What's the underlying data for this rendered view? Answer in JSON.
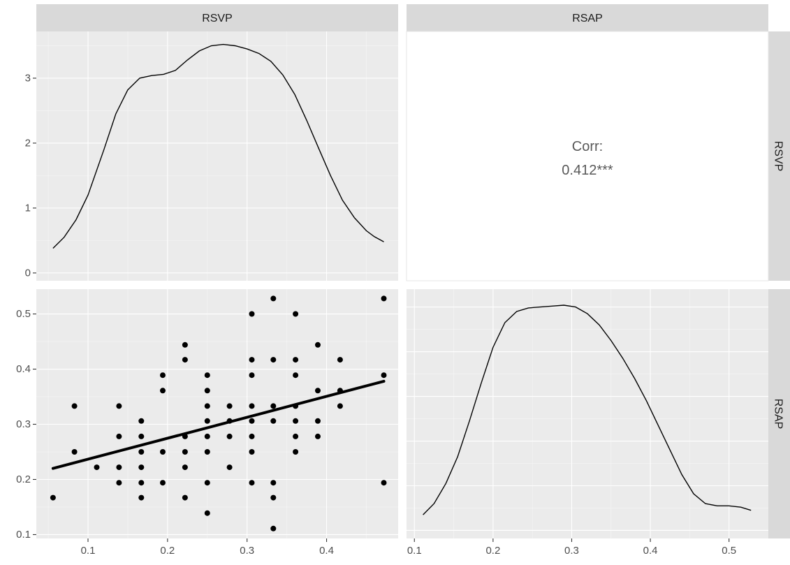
{
  "strips": {
    "top": [
      "RSVP",
      "RSAP"
    ],
    "right": [
      "RSVP",
      "RSAP"
    ]
  },
  "corr": {
    "label": "Corr:",
    "value": "0.412***",
    "r": 0.412
  },
  "chart_data": [
    {
      "panel": "RSVP density",
      "type": "line",
      "x_var": "RSVP",
      "xlim": [
        0.035,
        0.49
      ],
      "ylim": [
        -0.12,
        3.72
      ],
      "x_ticks": [
        0.1,
        0.2,
        0.3,
        0.4
      ],
      "y_ticks": [
        0,
        1,
        2,
        3
      ],
      "y_tick_labels": [
        "0",
        "1",
        "2",
        "3"
      ],
      "grid": true,
      "x": [
        0.056,
        0.07,
        0.085,
        0.1,
        0.12,
        0.135,
        0.15,
        0.165,
        0.18,
        0.195,
        0.21,
        0.225,
        0.24,
        0.255,
        0.27,
        0.285,
        0.3,
        0.315,
        0.33,
        0.345,
        0.36,
        0.375,
        0.39,
        0.405,
        0.42,
        0.435,
        0.45,
        0.46,
        0.472
      ],
      "y": [
        0.38,
        0.55,
        0.82,
        1.2,
        1.9,
        2.45,
        2.82,
        3.0,
        3.04,
        3.06,
        3.12,
        3.28,
        3.42,
        3.5,
        3.52,
        3.5,
        3.45,
        3.38,
        3.26,
        3.05,
        2.75,
        2.35,
        1.92,
        1.5,
        1.12,
        0.85,
        0.65,
        0.56,
        0.48
      ]
    },
    {
      "panel": "RSVP vs RSAP scatter",
      "type": "scatter",
      "x_var": "RSVP",
      "y_var": "RSAP",
      "xlim": [
        0.035,
        0.49
      ],
      "ylim": [
        0.093,
        0.545
      ],
      "x_ticks": [
        0.1,
        0.2,
        0.3,
        0.4
      ],
      "y_ticks": [
        0.1,
        0.2,
        0.3,
        0.4,
        0.5
      ],
      "grid": true,
      "points": [
        [
          0.056,
          0.167
        ],
        [
          0.083,
          0.333
        ],
        [
          0.083,
          0.25
        ],
        [
          0.111,
          0.222
        ],
        [
          0.139,
          0.333
        ],
        [
          0.139,
          0.278
        ],
        [
          0.139,
          0.222
        ],
        [
          0.139,
          0.194
        ],
        [
          0.167,
          0.306
        ],
        [
          0.167,
          0.278
        ],
        [
          0.167,
          0.25
        ],
        [
          0.167,
          0.222
        ],
        [
          0.167,
          0.194
        ],
        [
          0.167,
          0.167
        ],
        [
          0.194,
          0.389
        ],
        [
          0.194,
          0.361
        ],
        [
          0.194,
          0.25
        ],
        [
          0.194,
          0.194
        ],
        [
          0.222,
          0.444
        ],
        [
          0.222,
          0.417
        ],
        [
          0.222,
          0.278
        ],
        [
          0.222,
          0.25
        ],
        [
          0.222,
          0.222
        ],
        [
          0.222,
          0.167
        ],
        [
          0.25,
          0.389
        ],
        [
          0.25,
          0.361
        ],
        [
          0.25,
          0.333
        ],
        [
          0.25,
          0.306
        ],
        [
          0.25,
          0.278
        ],
        [
          0.25,
          0.25
        ],
        [
          0.25,
          0.194
        ],
        [
          0.25,
          0.139
        ],
        [
          0.278,
          0.333
        ],
        [
          0.278,
          0.306
        ],
        [
          0.278,
          0.278
        ],
        [
          0.278,
          0.222
        ],
        [
          0.306,
          0.5
        ],
        [
          0.306,
          0.417
        ],
        [
          0.306,
          0.389
        ],
        [
          0.306,
          0.333
        ],
        [
          0.306,
          0.306
        ],
        [
          0.306,
          0.278
        ],
        [
          0.306,
          0.25
        ],
        [
          0.306,
          0.194
        ],
        [
          0.333,
          0.528
        ],
        [
          0.333,
          0.417
        ],
        [
          0.333,
          0.333
        ],
        [
          0.333,
          0.306
        ],
        [
          0.333,
          0.194
        ],
        [
          0.333,
          0.167
        ],
        [
          0.333,
          0.111
        ],
        [
          0.361,
          0.5
        ],
        [
          0.361,
          0.417
        ],
        [
          0.361,
          0.389
        ],
        [
          0.361,
          0.333
        ],
        [
          0.361,
          0.306
        ],
        [
          0.361,
          0.278
        ],
        [
          0.361,
          0.25
        ],
        [
          0.389,
          0.444
        ],
        [
          0.389,
          0.361
        ],
        [
          0.389,
          0.306
        ],
        [
          0.389,
          0.278
        ],
        [
          0.417,
          0.417
        ],
        [
          0.417,
          0.361
        ],
        [
          0.417,
          0.333
        ],
        [
          0.472,
          0.528
        ],
        [
          0.472,
          0.389
        ],
        [
          0.472,
          0.194
        ]
      ],
      "fit_line": {
        "x": [
          0.056,
          0.472
        ],
        "y": [
          0.22,
          0.378
        ]
      }
    },
    {
      "panel": "RSAP density",
      "type": "line",
      "x_var": "RSAP",
      "xlim": [
        0.09,
        0.55
      ],
      "ylim": [
        -0.18,
        5.4
      ],
      "x_ticks": [
        0.1,
        0.2,
        0.3,
        0.4,
        0.5
      ],
      "grid": true,
      "x": [
        0.111,
        0.125,
        0.14,
        0.155,
        0.17,
        0.185,
        0.2,
        0.215,
        0.23,
        0.245,
        0.26,
        0.275,
        0.29,
        0.305,
        0.32,
        0.335,
        0.35,
        0.365,
        0.38,
        0.395,
        0.41,
        0.425,
        0.44,
        0.455,
        0.47,
        0.485,
        0.5,
        0.515,
        0.528
      ],
      "y": [
        0.35,
        0.6,
        1.05,
        1.65,
        2.45,
        3.3,
        4.1,
        4.65,
        4.9,
        4.98,
        5.0,
        5.02,
        5.04,
        5.0,
        4.85,
        4.6,
        4.25,
        3.85,
        3.4,
        2.9,
        2.35,
        1.8,
        1.25,
        0.82,
        0.6,
        0.55,
        0.55,
        0.52,
        0.45
      ]
    }
  ]
}
